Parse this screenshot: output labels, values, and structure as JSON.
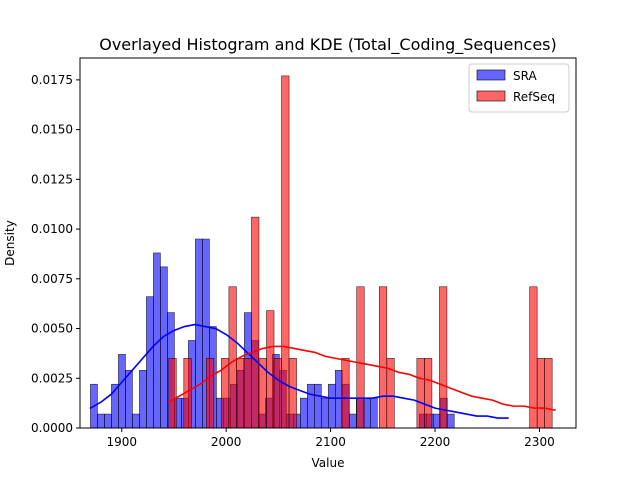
{
  "chart_data": {
    "type": "histogram",
    "title": "Overlayed Histogram and KDE (Total_Coding_Sequences)",
    "xlabel": "Value",
    "ylabel": "Density",
    "xlim": [
      1860,
      2335
    ],
    "ylim": [
      0,
      0.0186
    ],
    "xticks": [
      1900,
      2000,
      2100,
      2200,
      2300
    ],
    "yticks": [
      0.0,
      0.0025,
      0.005,
      0.0075,
      0.01,
      0.0125,
      0.015,
      0.0175
    ],
    "ytick_labels": [
      "0.0000",
      "0.0025",
      "0.0050",
      "0.0075",
      "0.0100",
      "0.0125",
      "0.0150",
      "0.0175"
    ],
    "grid": false,
    "legend_position": "top-right",
    "series": [
      {
        "name": "SRA",
        "bar_color": "#0000ff",
        "bar_opacity": 0.6,
        "line_color": "#0000ff",
        "bin_start": 1870,
        "bin_width": 6.7,
        "values": [
          0.0022,
          0.0007,
          0.0007,
          0.0022,
          0.0037,
          0.0029,
          0.0007,
          0.0029,
          0.0066,
          0.0088,
          0.0081,
          0.0058,
          0.0015,
          0.0015,
          0.0044,
          0.0095,
          0.0095,
          0.0051,
          0.0015,
          0.0015,
          0.0022,
          0.0029,
          0.0058,
          0.0044,
          0.0007,
          0.0015,
          0.0037,
          0.0029,
          0.0007,
          0.0007,
          0.0015,
          0.0022,
          0.0022,
          0.0015,
          0.0022,
          0.0029,
          0.0022,
          0.0007,
          0.0015,
          0.0015,
          0.0015,
          0.0,
          0.0,
          0.0,
          0.0,
          0.0,
          0.0,
          0.0007,
          0.0007,
          0.0007,
          0.0015,
          0.0007
        ],
        "kde": {
          "x": [
            1870,
            1880,
            1890,
            1900,
            1910,
            1920,
            1930,
            1940,
            1950,
            1960,
            1970,
            1980,
            1990,
            2000,
            2010,
            2020,
            2030,
            2040,
            2050,
            2060,
            2070,
            2080,
            2090,
            2100,
            2110,
            2120,
            2130,
            2140,
            2150,
            2160,
            2170,
            2180,
            2190,
            2200,
            2210,
            2220,
            2230,
            2240,
            2250,
            2260,
            2270
          ],
          "y": [
            0.001,
            0.0013,
            0.0017,
            0.0023,
            0.0029,
            0.0035,
            0.0041,
            0.0046,
            0.0049,
            0.0051,
            0.0052,
            0.0051,
            0.005,
            0.0047,
            0.0043,
            0.0038,
            0.0033,
            0.0028,
            0.0024,
            0.0021,
            0.0019,
            0.0017,
            0.0016,
            0.0015,
            0.0015,
            0.0015,
            0.0015,
            0.0015,
            0.0016,
            0.0016,
            0.0015,
            0.0014,
            0.0012,
            0.001,
            0.0009,
            0.0008,
            0.0007,
            0.0006,
            0.0006,
            0.0005,
            0.0005
          ]
        }
      },
      {
        "name": "RefSeq",
        "bar_color": "#ff0000",
        "bar_opacity": 0.6,
        "line_color": "#ff0000",
        "bin_start": 1945,
        "bin_width": 7.2,
        "values": [
          0.0035,
          0.0,
          0.0035,
          0.0,
          0.0,
          0.0035,
          0.0,
          0.0035,
          0.0071,
          0.0035,
          0.0035,
          0.0106,
          0.0035,
          0.0059,
          0.0035,
          0.0177,
          0.0035,
          0.0,
          0.0,
          0.0,
          0.0,
          0.0,
          0.0,
          0.0035,
          0.0,
          0.0071,
          0.0,
          0.0,
          0.0071,
          0.0035,
          0.0,
          0.0,
          0.0,
          0.0035,
          0.0035,
          0.0,
          0.0071,
          0.0,
          0.0,
          0.0,
          0.0,
          0.0,
          0.0,
          0.0,
          0.0,
          0.0,
          0.0,
          0.0,
          0.0071,
          0.0035,
          0.0035
        ],
        "kde": {
          "x": [
            1945,
            1955,
            1965,
            1975,
            1985,
            1995,
            2005,
            2015,
            2025,
            2035,
            2045,
            2055,
            2065,
            2075,
            2085,
            2095,
            2105,
            2115,
            2125,
            2135,
            2145,
            2155,
            2165,
            2175,
            2185,
            2195,
            2205,
            2215,
            2225,
            2235,
            2245,
            2255,
            2265,
            2275,
            2285,
            2295,
            2305,
            2315
          ],
          "y": [
            0.0013,
            0.0016,
            0.0019,
            0.0022,
            0.0026,
            0.0029,
            0.0033,
            0.0036,
            0.0038,
            0.004,
            0.0041,
            0.0041,
            0.004,
            0.0039,
            0.0038,
            0.0036,
            0.0035,
            0.0034,
            0.0033,
            0.0032,
            0.0031,
            0.003,
            0.0028,
            0.0027,
            0.0025,
            0.0024,
            0.0022,
            0.002,
            0.0018,
            0.0016,
            0.0015,
            0.0014,
            0.0012,
            0.0011,
            0.0011,
            0.001,
            0.001,
            0.0009
          ]
        }
      }
    ]
  }
}
